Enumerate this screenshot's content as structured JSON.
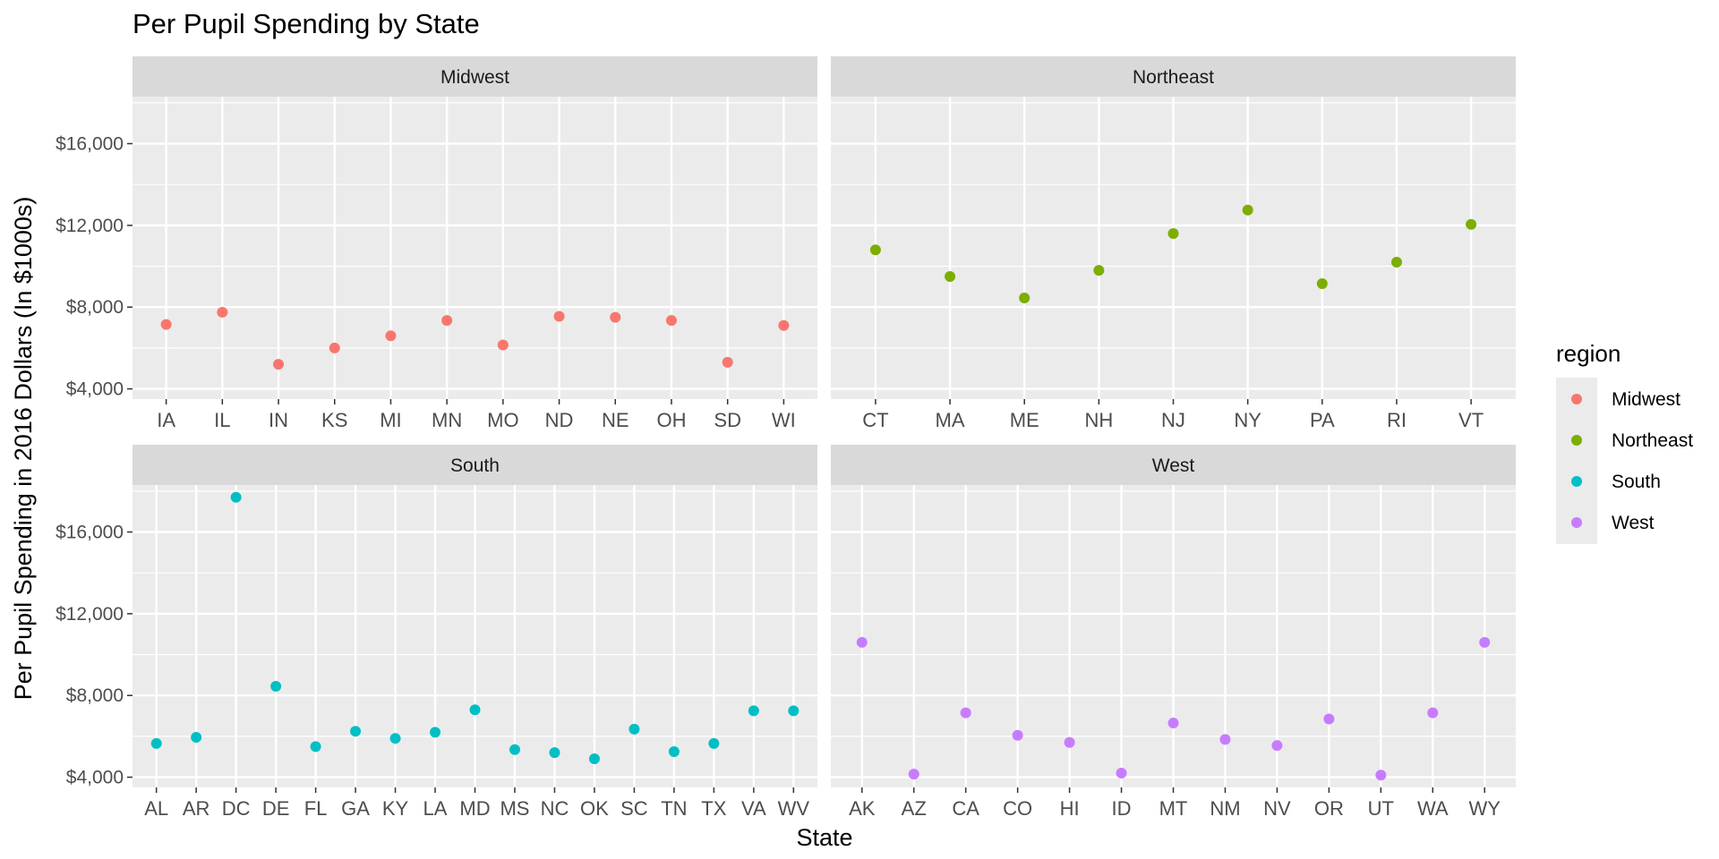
{
  "chart_data": {
    "type": "scatter",
    "title": "Per Pupil Spending by State",
    "xlabel": "State",
    "ylabel": "Per Pupil Spending in 2016 Dollars (In $1000s)",
    "y_ticks": [
      4000,
      8000,
      12000,
      16000
    ],
    "y_tick_labels": [
      "$4,000",
      "$8,000",
      "$12,000",
      "$16,000"
    ],
    "ylim": [
      3500,
      18300
    ],
    "grid": true,
    "legend_position": "right",
    "legend_title": "region",
    "facet_by": "region",
    "series": [
      {
        "name": "Midwest",
        "color": "#F8766D",
        "x": [
          "IA",
          "IL",
          "IN",
          "KS",
          "MI",
          "MN",
          "MO",
          "ND",
          "NE",
          "OH",
          "SD",
          "WI"
        ],
        "values": [
          7150,
          7750,
          5200,
          6000,
          6600,
          7350,
          6150,
          7550,
          7500,
          7350,
          5300,
          7100
        ]
      },
      {
        "name": "Northeast",
        "color": "#7CAE00",
        "x": [
          "CT",
          "MA",
          "ME",
          "NH",
          "NJ",
          "NY",
          "PA",
          "RI",
          "VT"
        ],
        "values": [
          10800,
          9500,
          8450,
          9800,
          11600,
          12750,
          9150,
          10200,
          12050
        ]
      },
      {
        "name": "South",
        "color": "#00BFC4",
        "x": [
          "AL",
          "AR",
          "DC",
          "DE",
          "FL",
          "GA",
          "KY",
          "LA",
          "MD",
          "MS",
          "NC",
          "OK",
          "SC",
          "TN",
          "TX",
          "VA",
          "WV"
        ],
        "values": [
          5650,
          5950,
          17700,
          8450,
          5500,
          6250,
          5900,
          6200,
          7300,
          5350,
          5200,
          4900,
          6350,
          5250,
          5650,
          7250,
          7250
        ]
      },
      {
        "name": "West",
        "color": "#C77CFF",
        "x": [
          "AK",
          "AZ",
          "CA",
          "CO",
          "HI",
          "ID",
          "MT",
          "NM",
          "NV",
          "OR",
          "UT",
          "WA",
          "WY"
        ],
        "values": [
          10600,
          4150,
          7150,
          6050,
          5700,
          4200,
          6650,
          5850,
          5550,
          6850,
          4100,
          7150,
          10600
        ]
      }
    ]
  }
}
